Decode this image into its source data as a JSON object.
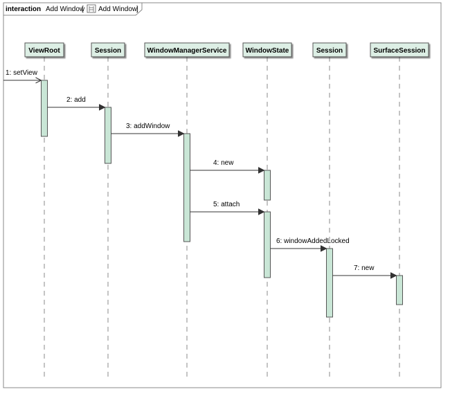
{
  "frame": {
    "keyword": "interaction",
    "name": "Add Window",
    "ref_name": "Add Window",
    "bracket_open": "[",
    "bracket_close": "]"
  },
  "lifelines": [
    {
      "name": "ViewRoot"
    },
    {
      "name": "Session"
    },
    {
      "name": "WindowManagerService"
    },
    {
      "name": "WindowState"
    },
    {
      "name": "Session"
    },
    {
      "name": "SurfaceSession"
    }
  ],
  "messages": [
    {
      "label": "1: setView",
      "from": null,
      "to": 0
    },
    {
      "label": "2: add",
      "from": 0,
      "to": 1
    },
    {
      "label": "3: addWindow",
      "from": 1,
      "to": 2
    },
    {
      "label": "4: new",
      "from": 2,
      "to": 3
    },
    {
      "label": "5: attach",
      "from": 2,
      "to": 3
    },
    {
      "label": "6: windowAddedLocked",
      "from": 3,
      "to": 4
    },
    {
      "label": "7: new",
      "from": 4,
      "to": 5
    }
  ],
  "colors": {
    "lifeline_head_fill": "#ddefe5",
    "activation_fill": "#c9e6d6",
    "border": "#555555",
    "dash": "#888888",
    "text": "#000000"
  },
  "icons": {
    "frame_ref": "interaction-diagram-icon"
  }
}
